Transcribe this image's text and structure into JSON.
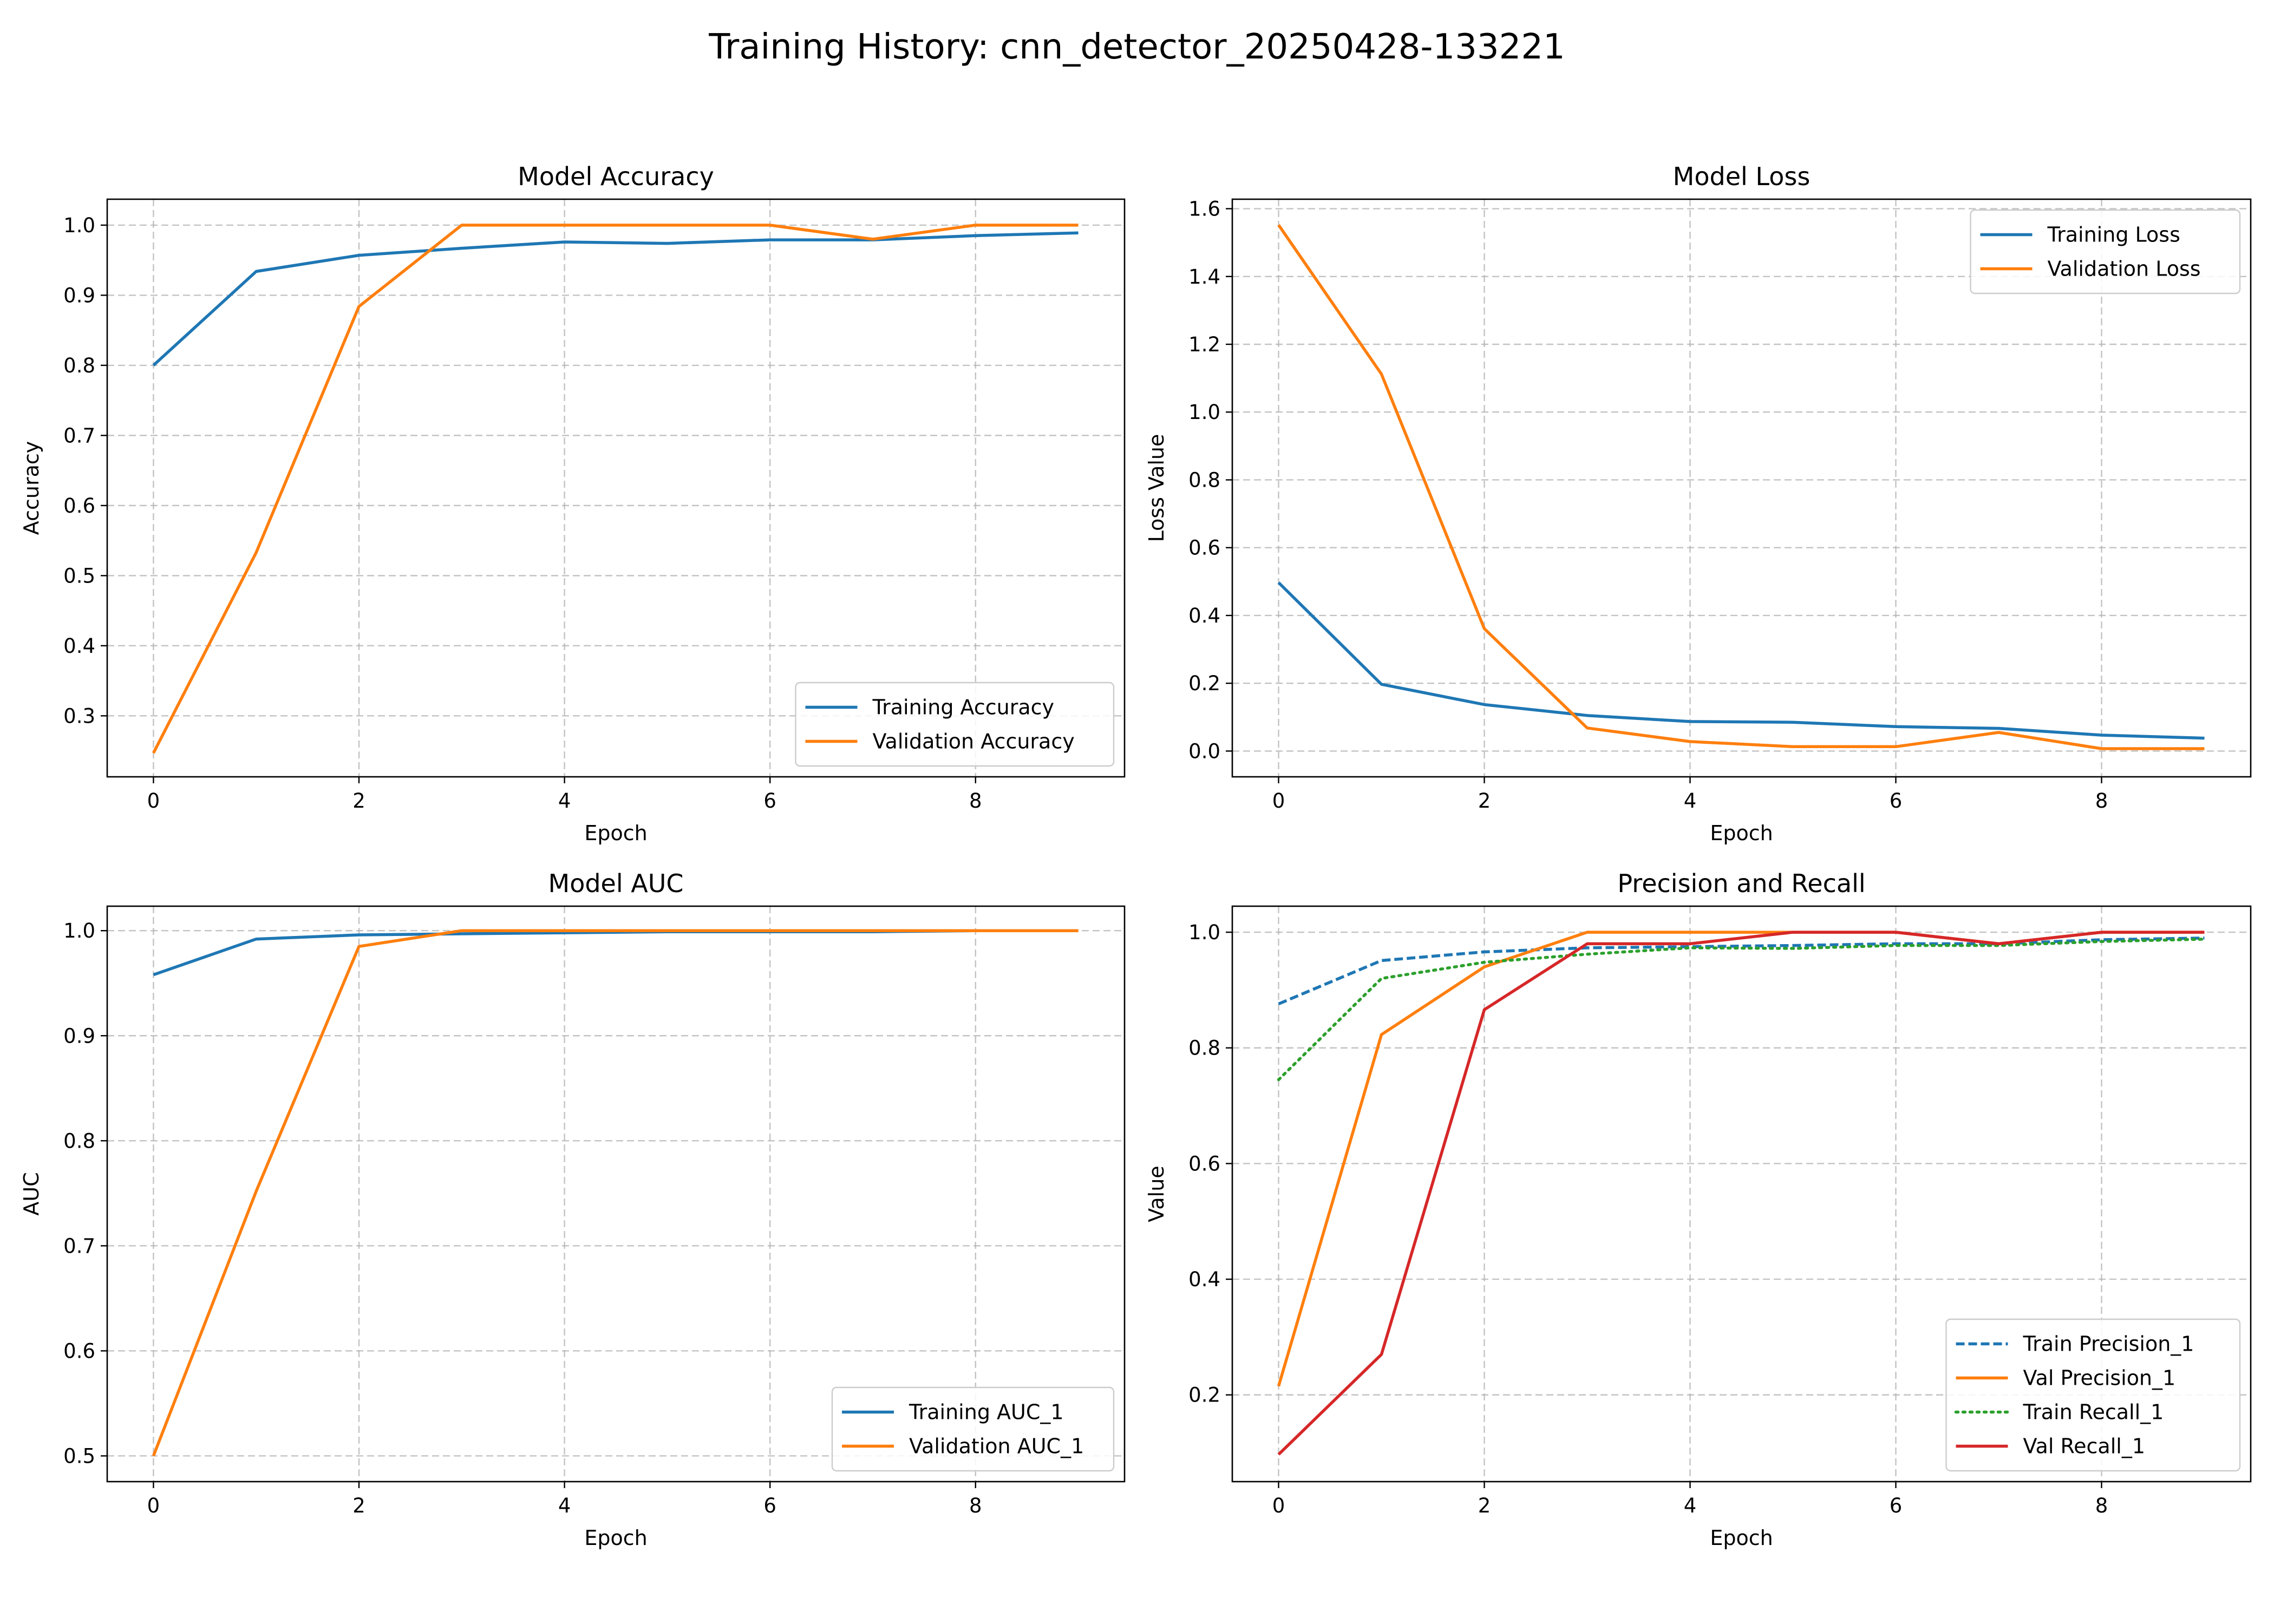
{
  "figure": {
    "title": "Training History: cnn_detector_20250428-133221"
  },
  "chart_data": [
    {
      "id": "accuracy",
      "type": "line",
      "title": "Model Accuracy",
      "xlabel": "Epoch",
      "ylabel": "Accuracy",
      "x": [
        0,
        1,
        2,
        3,
        4,
        5,
        6,
        7,
        8,
        9
      ],
      "xlim": [
        -0.45,
        9.45
      ],
      "ylim": [
        0.213,
        1.037
      ],
      "xticks": [
        0,
        2,
        4,
        6,
        8
      ],
      "yticks": [
        0.3,
        0.4,
        0.5,
        0.6,
        0.7,
        0.8,
        0.9,
        1.0
      ],
      "yticklabels": [
        "0.3",
        "0.4",
        "0.5",
        "0.6",
        "0.7",
        "0.8",
        "0.9",
        "1.0"
      ],
      "grid": true,
      "legend": "lower-right",
      "series": [
        {
          "name": "Training Accuracy",
          "color": "#1f77b4",
          "style": "solid",
          "values": [
            0.8,
            0.934,
            0.957,
            0.967,
            0.976,
            0.974,
            0.979,
            0.979,
            0.985,
            0.989
          ]
        },
        {
          "name": "Validation Accuracy",
          "color": "#ff7f0e",
          "style": "solid",
          "values": [
            0.247,
            0.533,
            0.884,
            1.0,
            1.0,
            1.0,
            1.0,
            0.98,
            1.0,
            1.0
          ]
        }
      ]
    },
    {
      "id": "loss",
      "type": "line",
      "title": "Model Loss",
      "xlabel": "Epoch",
      "ylabel": "Loss Value",
      "x": [
        0,
        1,
        2,
        3,
        4,
        5,
        6,
        7,
        8,
        9
      ],
      "xlim": [
        -0.45,
        9.45
      ],
      "ylim": [
        -0.076,
        1.628
      ],
      "xticks": [
        0,
        2,
        4,
        6,
        8
      ],
      "yticks": [
        0.0,
        0.2,
        0.4,
        0.6,
        0.8,
        1.0,
        1.2,
        1.4,
        1.6
      ],
      "yticklabels": [
        "0.0",
        "0.2",
        "0.4",
        "0.6",
        "0.8",
        "1.0",
        "1.2",
        "1.4",
        "1.6"
      ],
      "grid": true,
      "legend": "upper-right",
      "series": [
        {
          "name": "Training Loss",
          "color": "#1f77b4",
          "style": "solid",
          "values": [
            0.497,
            0.197,
            0.137,
            0.105,
            0.087,
            0.085,
            0.072,
            0.067,
            0.047,
            0.038
          ]
        },
        {
          "name": "Validation Loss",
          "color": "#ff7f0e",
          "style": "solid",
          "values": [
            1.552,
            1.112,
            0.361,
            0.068,
            0.028,
            0.013,
            0.013,
            0.055,
            0.007,
            0.007
          ]
        }
      ]
    },
    {
      "id": "auc",
      "type": "line",
      "title": "Model AUC",
      "xlabel": "Epoch",
      "ylabel": "AUC",
      "x": [
        0,
        1,
        2,
        3,
        4,
        5,
        6,
        7,
        8,
        9
      ],
      "xlim": [
        -0.45,
        9.45
      ],
      "ylim": [
        0.4755,
        1.0233
      ],
      "xticks": [
        0,
        2,
        4,
        6,
        8
      ],
      "yticks": [
        0.5,
        0.6,
        0.7,
        0.8,
        0.9,
        1.0
      ],
      "yticklabels": [
        "0.5",
        "0.6",
        "0.7",
        "0.8",
        "0.9",
        "1.0"
      ],
      "grid": true,
      "legend": "lower-right",
      "series": [
        {
          "name": "Training AUC_1",
          "color": "#1f77b4",
          "style": "solid",
          "values": [
            0.958,
            0.992,
            0.996,
            0.997,
            0.998,
            0.999,
            0.999,
            0.999,
            1.0,
            1.0
          ]
        },
        {
          "name": "Validation AUC_1",
          "color": "#ff7f0e",
          "style": "solid",
          "values": [
            0.5,
            0.752,
            0.985,
            1.0,
            1.0,
            1.0,
            1.0,
            1.0,
            1.0,
            1.0
          ]
        }
      ]
    },
    {
      "id": "precision_recall",
      "type": "line",
      "title": "Precision and Recall",
      "xlabel": "Epoch",
      "ylabel": "Value",
      "x": [
        0,
        1,
        2,
        3,
        4,
        5,
        6,
        7,
        8,
        9
      ],
      "xlim": [
        -0.45,
        9.45
      ],
      "ylim": [
        0.05,
        1.045
      ],
      "xticks": [
        0,
        2,
        4,
        6,
        8
      ],
      "yticks": [
        0.2,
        0.4,
        0.6,
        0.8,
        1.0
      ],
      "yticklabels": [
        "0.2",
        "0.4",
        "0.6",
        "0.8",
        "1.0"
      ],
      "grid": true,
      "legend": "lower-right",
      "series": [
        {
          "name": "Train Precision_1",
          "color": "#1f77b4",
          "style": "dashed",
          "values": [
            0.876,
            0.951,
            0.966,
            0.973,
            0.975,
            0.977,
            0.98,
            0.98,
            0.987,
            0.99
          ]
        },
        {
          "name": "Val Precision_1",
          "color": "#ff7f0e",
          "style": "solid",
          "values": [
            0.215,
            0.823,
            0.94,
            1.0,
            1.0,
            1.0,
            1.0,
            0.98,
            1.0,
            1.0
          ]
        },
        {
          "name": "Train Recall_1",
          "color": "#2ca02c",
          "style": "dotted",
          "values": [
            0.745,
            0.92,
            0.948,
            0.962,
            0.973,
            0.972,
            0.977,
            0.977,
            0.984,
            0.988
          ]
        },
        {
          "name": "Val Recall_1",
          "color": "#d62728",
          "style": "solid",
          "values": [
            0.097,
            0.27,
            0.866,
            0.98,
            0.98,
            1.0,
            1.0,
            0.98,
            1.0,
            1.0
          ]
        }
      ]
    }
  ]
}
